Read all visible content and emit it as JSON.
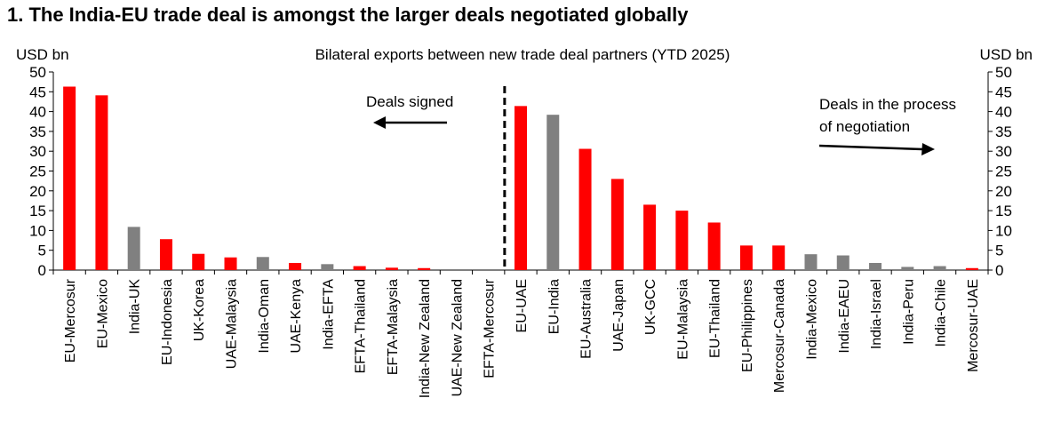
{
  "title": "1. The India-EU trade deal is amongst the larger deals negotiated globally",
  "chart_data": {
    "type": "bar",
    "subtitle": "Bilateral exports between new trade deal partners (YTD 2025)",
    "ylabel_left": "USD bn",
    "ylabel_right": "USD bn",
    "ylim": [
      0,
      50
    ],
    "yticks": [
      "0",
      "5",
      "10",
      "15",
      "20",
      "25",
      "30",
      "35",
      "40",
      "45",
      "50"
    ],
    "categories": [
      "EU-Mercosur",
      "EU-Mexico",
      "India-UK",
      "EU-Indonesia",
      "UK-Korea",
      "UAE-Malaysia",
      "India-Oman",
      "UAE-Kenya",
      "India-EFTA",
      "EFTA-Thailand",
      "EFTA-Malaysia",
      "India-New Zealand",
      "UAE-New Zealand",
      "EFTA-Mercosur",
      "EU-UAE",
      "EU-India",
      "EU-Australia",
      "UAE-Japan",
      "UK-GCC",
      "EU-Malaysia",
      "EU-Thailand",
      "EU-Philippines",
      "Mercosur-Canada",
      "India-Mexico",
      "India-EAEU",
      "India-Israel",
      "India-Peru",
      "India-Chile",
      "Mercosur-UAE"
    ],
    "values": [
      46.3,
      44.1,
      10.9,
      7.8,
      4.1,
      3.2,
      3.3,
      1.8,
      1.5,
      1.0,
      0.6,
      0.5,
      0.0,
      0.0,
      41.4,
      39.2,
      30.6,
      23.0,
      16.5,
      15.0,
      12.0,
      6.2,
      6.2,
      4.0,
      3.7,
      1.8,
      0.8,
      1.0,
      0.5
    ],
    "colors": [
      "red",
      "red",
      "gray",
      "red",
      "red",
      "red",
      "gray",
      "red",
      "gray",
      "red",
      "red",
      "red",
      "red",
      "red",
      "red",
      "gray",
      "red",
      "red",
      "red",
      "red",
      "red",
      "red",
      "red",
      "gray",
      "gray",
      "gray",
      "gray",
      "gray",
      "red"
    ],
    "palette": {
      "red": "#ff0000",
      "gray": "#808080"
    },
    "divider_after_index": 13,
    "annotations": {
      "signed": "Deals signed",
      "negotiation_line1": "Deals in the process",
      "negotiation_line2": "of negotiation"
    }
  }
}
